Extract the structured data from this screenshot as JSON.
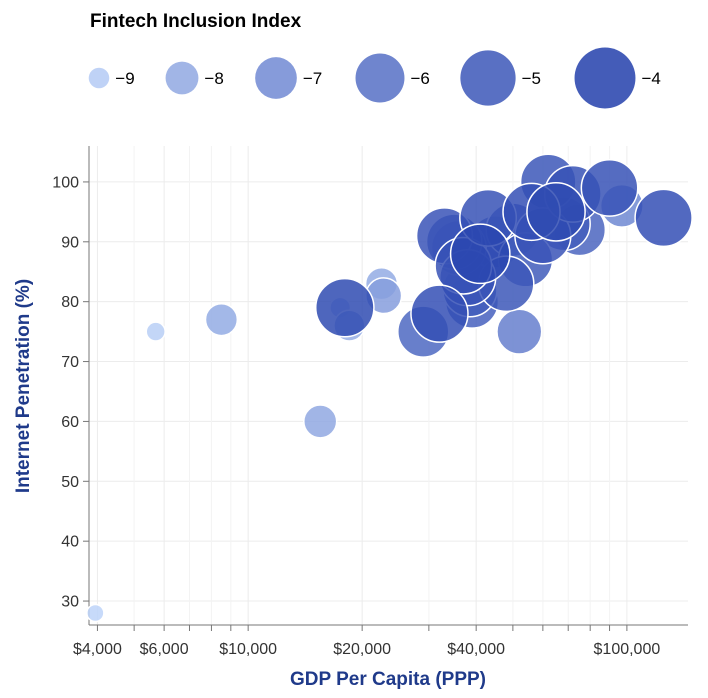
{
  "chart_data": {
    "type": "scatter",
    "title": "",
    "xlabel": "GDP Per Capita (PPP)",
    "ylabel": "Internet Penetration (%)",
    "x_scale": "log",
    "xlim": [
      3800,
      145000
    ],
    "ylim": [
      26,
      106
    ],
    "grid": true,
    "legend": {
      "title": "Fintech Inclusion Index",
      "position": "top-left",
      "entries": [
        {
          "label": "−9",
          "value": -9
        },
        {
          "label": "−8",
          "value": -8
        },
        {
          "label": "−7",
          "value": -7
        },
        {
          "label": "−6",
          "value": -6
        },
        {
          "label": "−5",
          "value": -5
        },
        {
          "label": "−4",
          "value": -4
        }
      ]
    },
    "x_ticks": [
      {
        "value": 4000,
        "label": "$4,000"
      },
      {
        "value": 6000,
        "label": "$6,000"
      },
      {
        "value": 10000,
        "label": "$10,000"
      },
      {
        "value": 20000,
        "label": "$20,000"
      },
      {
        "value": 40000,
        "label": "$40,000"
      },
      {
        "value": 100000,
        "label": "$100,000"
      }
    ],
    "x_minor_ticks": [
      5000,
      7000,
      8000,
      9000,
      30000,
      50000,
      60000,
      70000,
      80000,
      90000
    ],
    "y_ticks": [
      {
        "value": 30,
        "label": "30"
      },
      {
        "value": 40,
        "label": "40"
      },
      {
        "value": 50,
        "label": "50"
      },
      {
        "value": 60,
        "label": "60"
      },
      {
        "value": 70,
        "label": "70"
      },
      {
        "value": 80,
        "label": "80"
      },
      {
        "value": 90,
        "label": "90"
      },
      {
        "value": 100,
        "label": "100"
      }
    ],
    "size_range": [
      -9.3,
      -3.8
    ],
    "points": [
      {
        "x": 3950,
        "y": 28,
        "index": -9.2
      },
      {
        "x": 5700,
        "y": 75,
        "index": -9.1
      },
      {
        "x": 8500,
        "y": 77,
        "index": -8.1
      },
      {
        "x": 15500,
        "y": 60,
        "index": -8.0
      },
      {
        "x": 17500,
        "y": 79,
        "index": -9.0
      },
      {
        "x": 18500,
        "y": 76,
        "index": -8.2
      },
      {
        "x": 18000,
        "y": 79,
        "index": -4.5
      },
      {
        "x": 22500,
        "y": 83,
        "index": -8.1
      },
      {
        "x": 22800,
        "y": 81,
        "index": -7.7
      },
      {
        "x": 29000,
        "y": 75,
        "index": -5.7
      },
      {
        "x": 32000,
        "y": 78,
        "index": -4.7
      },
      {
        "x": 33000,
        "y": 91,
        "index": -4.9
      },
      {
        "x": 35000,
        "y": 90,
        "index": -5.0
      },
      {
        "x": 36000,
        "y": 89,
        "index": -5.1
      },
      {
        "x": 37000,
        "y": 86,
        "index": -4.8
      },
      {
        "x": 38000,
        "y": 84,
        "index": -4.9
      },
      {
        "x": 38500,
        "y": 82,
        "index": -5.2
      },
      {
        "x": 39000,
        "y": 80,
        "index": -5.4
      },
      {
        "x": 41000,
        "y": 88,
        "index": -4.3
      },
      {
        "x": 43000,
        "y": 94,
        "index": -4.8
      },
      {
        "x": 45000,
        "y": 90,
        "index": -5.5
      },
      {
        "x": 48000,
        "y": 83,
        "index": -5.0
      },
      {
        "x": 50000,
        "y": 92,
        "index": -5.3
      },
      {
        "x": 52000,
        "y": 75,
        "index": -6.6
      },
      {
        "x": 54000,
        "y": 87,
        "index": -5.2
      },
      {
        "x": 56000,
        "y": 95,
        "index": -4.7
      },
      {
        "x": 60000,
        "y": 91,
        "index": -4.9
      },
      {
        "x": 62000,
        "y": 100,
        "index": -5.0
      },
      {
        "x": 65000,
        "y": 95,
        "index": -4.5
      },
      {
        "x": 68000,
        "y": 93,
        "index": -5.3
      },
      {
        "x": 72000,
        "y": 98,
        "index": -4.8
      },
      {
        "x": 75000,
        "y": 92,
        "index": -5.6
      },
      {
        "x": 90000,
        "y": 99,
        "index": -4.8
      },
      {
        "x": 97000,
        "y": 96,
        "index": -6.9
      },
      {
        "x": 125000,
        "y": 94,
        "index": -4.7
      }
    ]
  }
}
